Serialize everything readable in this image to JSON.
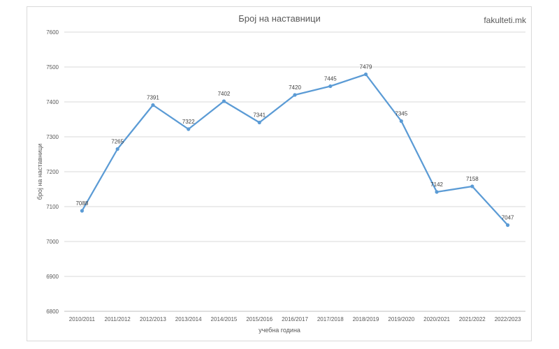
{
  "watermark": "fakulteti.mk",
  "chart_data": {
    "type": "line",
    "title": "Број на наставници",
    "xlabel": "учебна година",
    "ylabel": "број на наставници",
    "categories": [
      "2010/2011",
      "2011/2012",
      "2012/2013",
      "2013/2014",
      "2014/2015",
      "2015/2016",
      "2016/2017",
      "2017/2018",
      "2018/2019",
      "2019/2020",
      "2020/2021",
      "2021/2022",
      "2022/2023"
    ],
    "series": [
      {
        "values": [
          7088,
          7265,
          7391,
          7322,
          7402,
          7341,
          7420,
          7445,
          7479,
          7345,
          7142,
          7158,
          7047
        ]
      }
    ],
    "data_labels": [
      "7088",
      "7265",
      "7391",
      "7322",
      "7402",
      "7341",
      "7420",
      "7445",
      "7479",
      "7345",
      "7142",
      "7158",
      "7047"
    ],
    "yticks": [
      6800,
      6900,
      7000,
      7100,
      7200,
      7300,
      7400,
      7500,
      7600
    ],
    "ylim": [
      6800,
      7600
    ],
    "grid": true,
    "legend": "none",
    "line_color": "#5b9bd5"
  }
}
